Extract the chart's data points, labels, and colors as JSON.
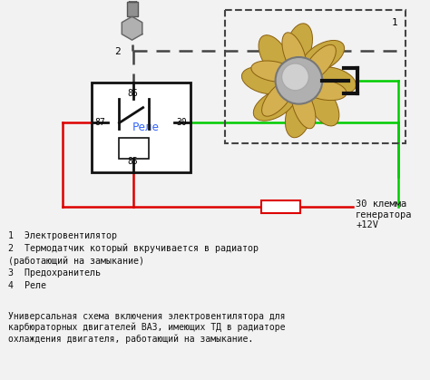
{
  "bg_color": "#f2f2f2",
  "relay_label_text": "Реле",
  "relay_label_color": "#3366ff",
  "legend_lines": [
    "1  Электровентилятор",
    "2  Термодатчик который вкручивается в радиатор",
    "(работающий на замыкание)",
    "3  Предохранитель",
    "4  Реле"
  ],
  "bottom_text": "Универсальная схема включения электровентилятора для\nкарбюраторных двигателей ВАЗ, имеющих ТД в радиаторе\nохлаждения двигателя, работающий на замыкание.",
  "terminal_label": "30 клемма\nгенератора\n+12V",
  "red": "#dd0000",
  "green": "#00cc00",
  "dash_color": "#444444",
  "black": "#111111"
}
